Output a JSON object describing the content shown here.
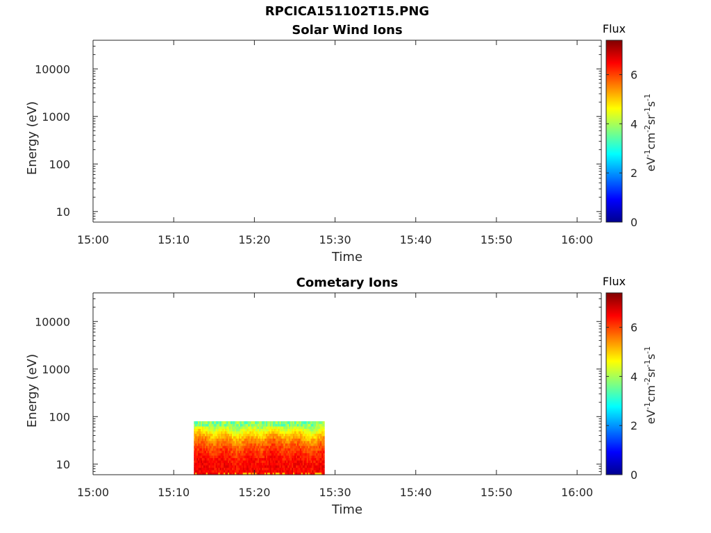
{
  "figure_title": "RPCICA151102T15.PNG",
  "chart_data": [
    {
      "type": "heatmap",
      "title": "Solar Wind Ions",
      "xlabel": "Time",
      "ylabel": "Energy (eV)",
      "x_ticks": [
        "15:00",
        "15:10",
        "15:20",
        "15:30",
        "15:40",
        "15:50",
        "16:00"
      ],
      "xlim": [
        "15:00",
        "16:03"
      ],
      "y_scale": "log",
      "y_ticks": [
        10,
        100,
        1000,
        10000
      ],
      "y_tick_labels": [
        "10",
        "100",
        "1000",
        "10000"
      ],
      "ylim": [
        6,
        40000
      ],
      "colorbar": {
        "title": "Flux",
        "label": "eV-1cm-2sr-1s-1",
        "ticks": [
          0,
          2,
          4,
          6
        ],
        "tick_labels": [
          "0",
          "2",
          "4",
          "6"
        ],
        "range": [
          0,
          7.4
        ],
        "colormap": "jet"
      },
      "data_present": false,
      "data_block": null
    },
    {
      "type": "heatmap",
      "title": "Cometary Ions",
      "xlabel": "Time",
      "ylabel": "Energy (eV)",
      "x_ticks": [
        "15:00",
        "15:10",
        "15:20",
        "15:30",
        "15:40",
        "15:50",
        "16:00"
      ],
      "xlim": [
        "15:00",
        "16:03"
      ],
      "y_scale": "log",
      "y_ticks": [
        10,
        100,
        1000,
        10000
      ],
      "y_tick_labels": [
        "10",
        "100",
        "1000",
        "10000"
      ],
      "ylim": [
        6,
        40000
      ],
      "colorbar": {
        "title": "Flux",
        "label": "eV-1cm-2sr-1s-1",
        "ticks": [
          0,
          2,
          4,
          6
        ],
        "tick_labels": [
          "0",
          "2",
          "4",
          "6"
        ],
        "range": [
          0,
          7.4
        ],
        "colormap": "jet"
      },
      "data_present": true,
      "data_block": {
        "time_start": "15:12:30",
        "time_end": "15:28:40",
        "energy_min": 6,
        "energy_max": 80,
        "typical_flux_low_energy": 6.5,
        "typical_flux_top_energy": 3.5
      }
    }
  ]
}
